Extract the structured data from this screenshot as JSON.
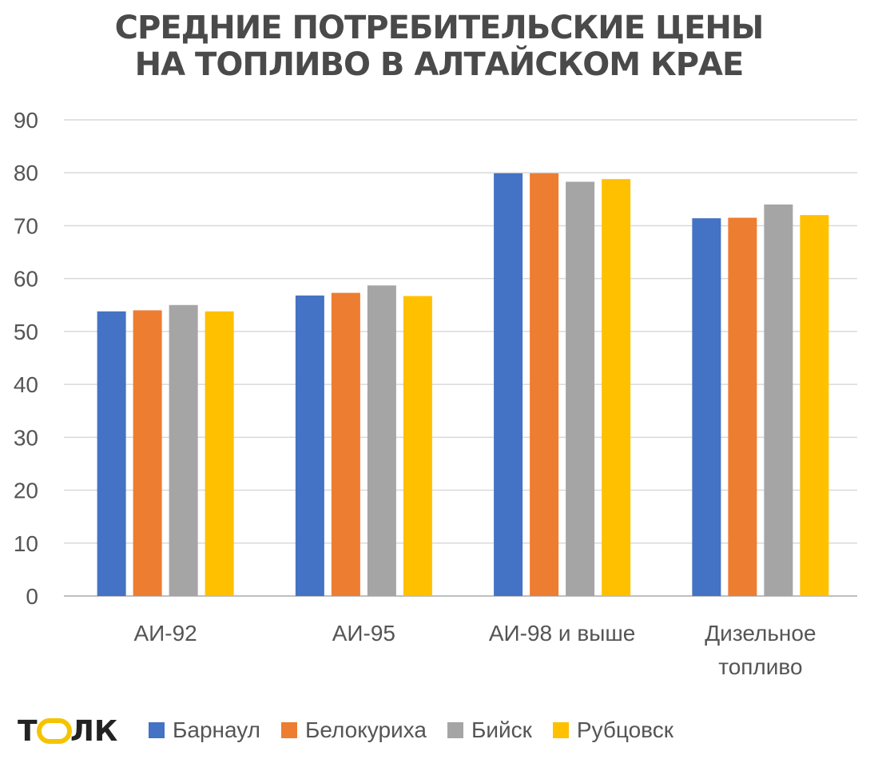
{
  "title_lines": [
    "Средние потребительские цены",
    "на топливо в Алтайском крае"
  ],
  "brand": {
    "name": "ТОЛК",
    "letters": [
      "Т",
      "Л",
      "К"
    ],
    "accent": "#f5c400",
    "text_color": "#222222"
  },
  "chart_data": {
    "type": "bar",
    "categories": [
      [
        "АИ-92"
      ],
      [
        "АИ-95"
      ],
      [
        "АИ-98 и выше"
      ],
      [
        "Дизельное",
        "топливо"
      ]
    ],
    "series": [
      {
        "name": "Барнаул",
        "color": "#4472c4",
        "values": [
          53.8,
          56.8,
          79.9,
          71.4
        ]
      },
      {
        "name": "Белокуриха",
        "color": "#ed7d31",
        "values": [
          54.0,
          57.3,
          79.9,
          71.5
        ]
      },
      {
        "name": "Бийск",
        "color": "#a5a5a5",
        "values": [
          55.0,
          58.7,
          78.3,
          74.0
        ]
      },
      {
        "name": "Рубцовск",
        "color": "#ffc000",
        "values": [
          53.8,
          56.7,
          78.8,
          72.0
        ]
      }
    ],
    "y_ticks": [
      "0",
      "10",
      "20",
      "30",
      "40",
      "50",
      "60",
      "70",
      "80",
      "90"
    ],
    "ylim": [
      0,
      90
    ],
    "grid": true,
    "legend_position": "bottom"
  }
}
